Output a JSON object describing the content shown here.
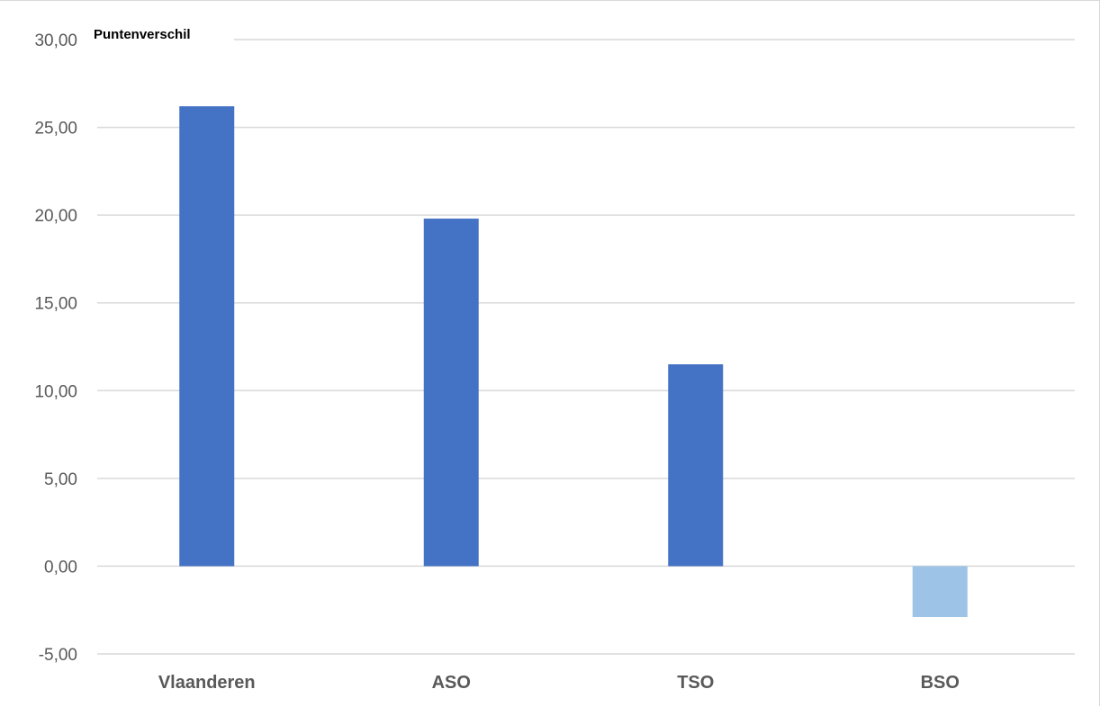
{
  "chart_data": {
    "type": "bar",
    "title": "Puntenverschil",
    "categories": [
      "Vlaanderen",
      "ASO",
      "TSO",
      "BSO"
    ],
    "values": [
      26.2,
      19.8,
      11.5,
      -2.9
    ],
    "ylim": [
      -5,
      30
    ],
    "yticks": [
      "30,00",
      "25,00",
      "20,00",
      "15,00",
      "10,00",
      "5,00",
      "0,00",
      "-5,00"
    ],
    "ytick_values": [
      30,
      25,
      20,
      15,
      10,
      5,
      0,
      -5
    ],
    "grid": true,
    "colors": {
      "positive": "#4472c4",
      "negative": "#9dc3e6",
      "grid": "#d9d9d9",
      "text": "#595959"
    }
  }
}
